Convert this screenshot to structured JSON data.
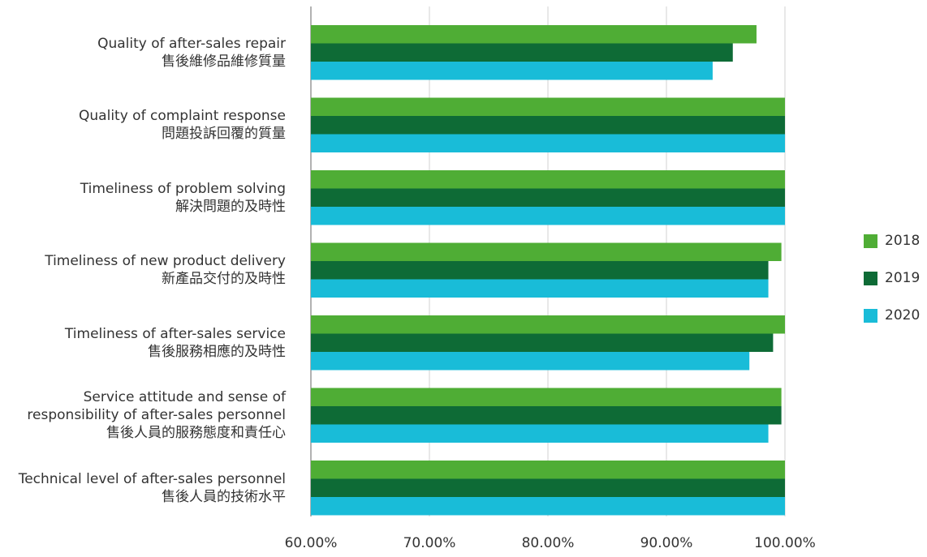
{
  "chart_data": {
    "type": "bar",
    "orientation": "horizontal",
    "categories": [
      [
        "Quality of after-sales repair",
        "售後維修品維修質量"
      ],
      [
        "Quality of complaint response",
        "問題投訴回覆的質量"
      ],
      [
        "Timeliness of problem solving",
        "解決問題的及時性"
      ],
      [
        "Timeliness of new product delivery",
        "新產品交付的及時性"
      ],
      [
        "Timeliness of after-sales service",
        "售後服務相應的及時性"
      ],
      [
        "Service attitude and sense of",
        "responsibility of after-sales personnel",
        "售後人員的服務態度和責任心"
      ],
      [
        "Technical level of after-sales personnel",
        "售後人員的技術水平"
      ]
    ],
    "series": [
      {
        "name": "2018",
        "color": "#4fad35",
        "values": [
          97.6,
          100.0,
          100.0,
          99.7,
          100.0,
          99.7,
          100.0
        ]
      },
      {
        "name": "2019",
        "color": "#0e6b36",
        "values": [
          95.6,
          100.0,
          100.0,
          98.6,
          99.0,
          99.7,
          100.0
        ]
      },
      {
        "name": "2020",
        "color": "#19bcd8",
        "values": [
          93.9,
          100.0,
          100.0,
          98.6,
          97.0,
          98.6,
          100.0
        ]
      }
    ],
    "xlim": [
      60,
      100
    ],
    "xticks": [
      "60.00%",
      "70.00%",
      "80.00%",
      "90.00%",
      "100.00%"
    ],
    "grid": "vertical",
    "legend": "right"
  }
}
